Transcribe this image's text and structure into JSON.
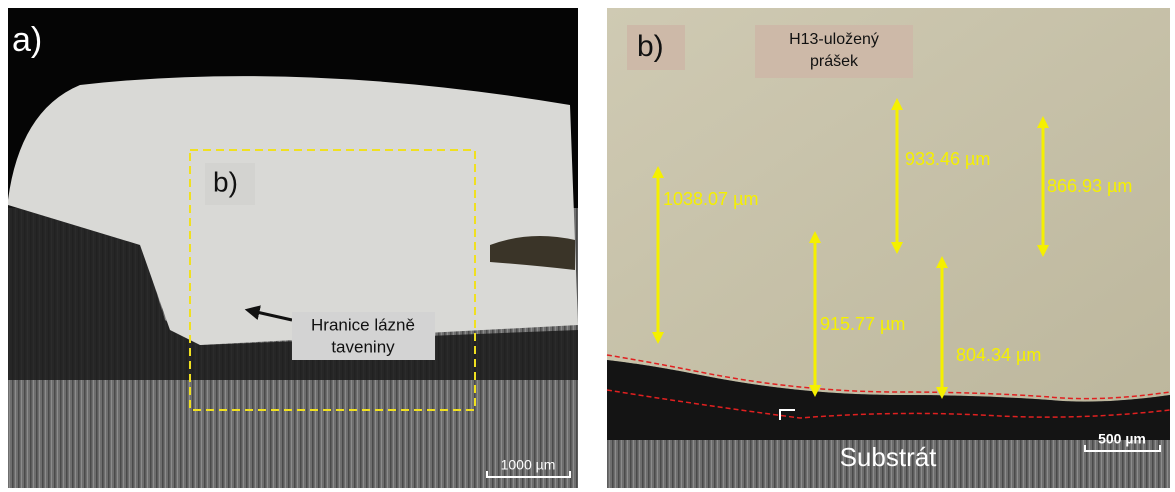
{
  "panel_a": {
    "label": "a)",
    "inset_label": "b)",
    "annotation": [
      "Hranice lázně",
      "taveniny"
    ],
    "scale_bar": "1000 µm"
  },
  "panel_b": {
    "label": "b)",
    "powder_label": [
      "H13-uložený",
      "prášek"
    ],
    "measurements": [
      "1038.07 µm",
      "933.46 µm",
      "866.93 µm",
      "915.77 µm",
      "804.34 µm"
    ],
    "substrate_label": "Substrát",
    "scale_bar": "500 µm"
  }
}
